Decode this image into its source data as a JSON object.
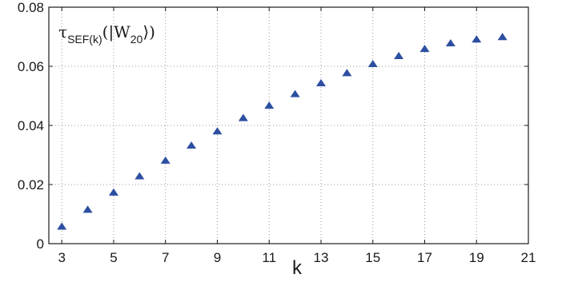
{
  "chart_data": {
    "type": "scatter",
    "title": "",
    "xlabel": "k",
    "ylabel": "",
    "annotation": {
      "symbol": "τ",
      "subscript": "SEF(k)",
      "open": "(|W",
      "state_subscript": "20",
      "close": "⟩)"
    },
    "xlim": [
      2.5,
      21
    ],
    "ylim": [
      0,
      0.08
    ],
    "xticks": [
      3,
      5,
      7,
      9,
      11,
      13,
      15,
      17,
      19,
      21
    ],
    "xtick_labels": [
      "3",
      "5",
      "7",
      "9",
      "11",
      "13",
      "15",
      "17",
      "19",
      "21"
    ],
    "yticks": [
      0,
      0.02,
      0.04,
      0.06,
      0.08
    ],
    "ytick_labels": [
      "0",
      "0.02",
      "0.04",
      "0.06",
      "0.08"
    ],
    "grid": true,
    "marker": "triangle",
    "marker_color": "#2d4fa1",
    "series": [
      {
        "x": [
          3,
          4,
          5,
          6,
          7,
          8,
          9,
          10,
          11,
          12,
          13,
          14,
          15,
          16,
          17,
          18,
          19,
          20
        ],
        "y": [
          0.0058,
          0.0115,
          0.0173,
          0.0228,
          0.0281,
          0.0332,
          0.038,
          0.0425,
          0.0467,
          0.0506,
          0.0543,
          0.0577,
          0.0608,
          0.0635,
          0.0659,
          0.0678,
          0.0691,
          0.0699
        ]
      }
    ]
  }
}
